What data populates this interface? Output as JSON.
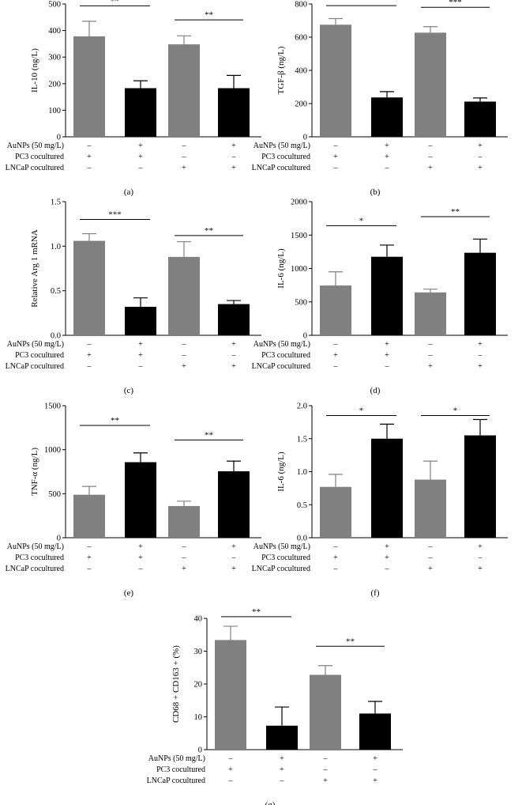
{
  "colors": {
    "gray_bar": "#808080",
    "black_bar": "#000000",
    "axis": "#000000"
  },
  "condition_table": {
    "row_labels": [
      "AuNPs (50 mg/L)",
      "PC3 cocultured",
      "LNCaP cocultured"
    ],
    "signs": [
      [
        "–",
        "+",
        "–",
        "+"
      ],
      [
        "+",
        "+",
        "–",
        "–"
      ],
      [
        "–",
        "–",
        "+",
        "+"
      ]
    ]
  },
  "chart_data": [
    {
      "type": "bar",
      "panel_label": "(a)",
      "ylabel": "IL-10 (ng/L)",
      "ylim": [
        0,
        500
      ],
      "yticks": [
        0,
        100,
        200,
        300,
        400,
        500
      ],
      "ytick_labels": [
        "0",
        "100",
        "200",
        "300",
        "400",
        "500"
      ],
      "values": [
        378,
        183,
        348,
        183
      ],
      "errors": [
        57,
        28,
        32,
        48
      ],
      "bar_colors": [
        "gray",
        "black",
        "gray",
        "black"
      ],
      "significance": [
        {
          "from": 0,
          "to": 1,
          "label": "**",
          "y": 493
        },
        {
          "from": 2,
          "to": 3,
          "label": "**",
          "y": 440
        }
      ]
    },
    {
      "type": "bar",
      "panel_label": "(b)",
      "ylabel": "TGF-β (ng/L)",
      "ylim": [
        0,
        800
      ],
      "yticks": [
        0,
        200,
        400,
        600,
        800
      ],
      "ytick_labels": [
        "0",
        "200",
        "400",
        "600",
        "800"
      ],
      "values": [
        675,
        237,
        627,
        212
      ],
      "errors": [
        37,
        35,
        36,
        22
      ],
      "bar_colors": [
        "gray",
        "black",
        "gray",
        "black"
      ],
      "significance": [
        {
          "from": 0,
          "to": 1,
          "label": "",
          "y": 790
        },
        {
          "from": 2,
          "to": 3,
          "label": "***",
          "y": 780
        }
      ]
    },
    {
      "type": "bar",
      "panel_label": "(c)",
      "ylabel": "Relative Arg 1 mRNA",
      "ylim": [
        0,
        1.5
      ],
      "yticks": [
        0,
        0.5,
        1.0,
        1.5
      ],
      "ytick_labels": [
        "0.0",
        "0.5",
        "1.0",
        "1.5"
      ],
      "values": [
        1.06,
        0.32,
        0.88,
        0.35
      ],
      "errors": [
        0.08,
        0.1,
        0.17,
        0.04
      ],
      "bar_colors": [
        "gray",
        "black",
        "gray",
        "black"
      ],
      "significance": [
        {
          "from": 0,
          "to": 1,
          "label": "***",
          "y": 1.3
        },
        {
          "from": 2,
          "to": 3,
          "label": "**",
          "y": 1.12
        }
      ]
    },
    {
      "type": "bar",
      "panel_label": "(d)",
      "ylabel": "IL-6 (ng/L)",
      "ylim": [
        0,
        2000
      ],
      "yticks": [
        0,
        500,
        1000,
        1500,
        2000
      ],
      "ytick_labels": [
        "0",
        "500",
        "1000",
        "1500",
        "2000"
      ],
      "values": [
        745,
        1175,
        642,
        1235
      ],
      "errors": [
        205,
        175,
        48,
        205
      ],
      "bar_colors": [
        "gray",
        "black",
        "gray",
        "black"
      ],
      "significance": [
        {
          "from": 0,
          "to": 1,
          "label": "*",
          "y": 1640
        },
        {
          "from": 2,
          "to": 3,
          "label": "**",
          "y": 1775
        }
      ]
    },
    {
      "type": "bar",
      "panel_label": "(e)",
      "ylabel": "TNF-α (ng/L)",
      "ylim": [
        0,
        1500
      ],
      "yticks": [
        0,
        500,
        1000,
        1500
      ],
      "ytick_labels": [
        "0",
        "500",
        "1000",
        "1500"
      ],
      "values": [
        488,
        858,
        360,
        755
      ],
      "errors": [
        95,
        105,
        55,
        115
      ],
      "bar_colors": [
        "gray",
        "black",
        "gray",
        "black"
      ],
      "significance": [
        {
          "from": 0,
          "to": 1,
          "label": "**",
          "y": 1275
        },
        {
          "from": 2,
          "to": 3,
          "label": "**",
          "y": 1110
        }
      ]
    },
    {
      "type": "bar",
      "panel_label": "(f)",
      "ylabel": "IL-6 (ng/L)",
      "ylim": [
        0,
        2.0
      ],
      "yticks": [
        0,
        0.5,
        1.0,
        1.5,
        2.0
      ],
      "ytick_labels": [
        "0.0",
        "0.5",
        "1.0",
        "1.5",
        "2.0"
      ],
      "values": [
        0.77,
        1.5,
        0.88,
        1.55
      ],
      "errors": [
        0.19,
        0.22,
        0.28,
        0.24
      ],
      "bar_colors": [
        "gray",
        "black",
        "gray",
        "black"
      ],
      "significance": [
        {
          "from": 0,
          "to": 1,
          "label": "*",
          "y": 1.85
        },
        {
          "from": 2,
          "to": 3,
          "label": "*",
          "y": 1.85
        }
      ]
    },
    {
      "type": "bar",
      "panel_label": "(g)",
      "ylabel": "CD68 + CD163 + (%)",
      "ylim": [
        0,
        40
      ],
      "yticks": [
        0,
        10,
        20,
        30,
        40
      ],
      "ytick_labels": [
        "0",
        "10",
        "20",
        "30",
        "40"
      ],
      "values": [
        33.4,
        7.3,
        22.8,
        11.0
      ],
      "errors": [
        4.2,
        5.7,
        2.8,
        3.7
      ],
      "bar_colors": [
        "gray",
        "black",
        "gray",
        "black"
      ],
      "significance": [
        {
          "from": 0,
          "to": 1,
          "label": "**",
          "y": 40.5
        },
        {
          "from": 2,
          "to": 3,
          "label": "**",
          "y": 31.5
        }
      ]
    }
  ]
}
